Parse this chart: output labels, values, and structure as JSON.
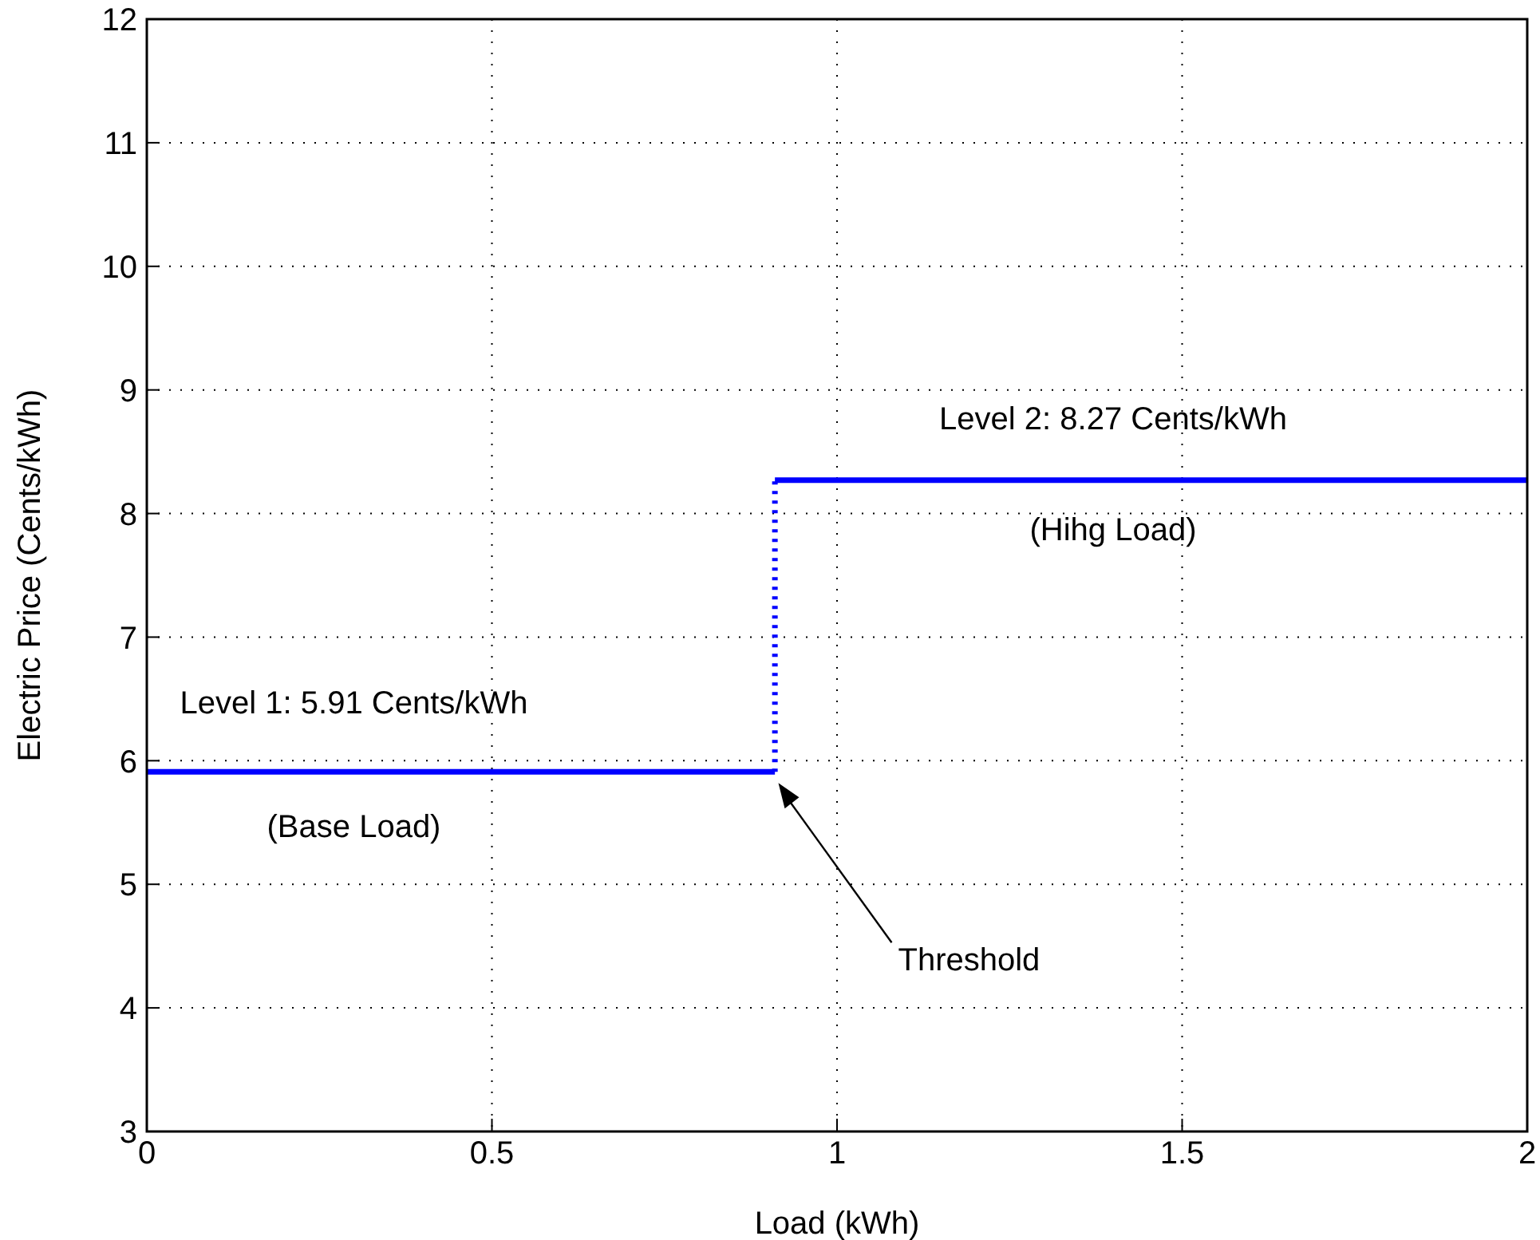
{
  "chart_data": {
    "type": "line",
    "xlabel": "Load (kWh)",
    "ylabel": "Electric Price (Cents/kWh)",
    "xlim": [
      0,
      2
    ],
    "xticks": [
      0,
      0.5,
      1,
      1.5,
      2
    ],
    "ylim": [
      3,
      12
    ],
    "yticks": [
      3,
      4,
      5,
      6,
      7,
      8,
      9,
      10,
      11,
      12
    ],
    "grid": true,
    "line_style": "solid",
    "series": [
      {
        "color": "#0000ff",
        "x": [
          0,
          0.91
        ],
        "values": [
          5.91,
          5.91
        ]
      },
      {
        "color": "#0000ff",
        "x": [
          0.91,
          0.91
        ],
        "values": [
          5.91,
          8.27
        ],
        "line_style": "dotted"
      },
      {
        "color": "#0000ff",
        "x": [
          0.91,
          2
        ],
        "values": [
          8.27,
          8.27
        ]
      }
    ],
    "annotations": [
      "Level 1: 5.91 Cents/kWh",
      "(Base Load)",
      "Level 2: 8.27 Cents/kWh",
      "(Hihg Load)",
      "Threshold"
    ]
  }
}
